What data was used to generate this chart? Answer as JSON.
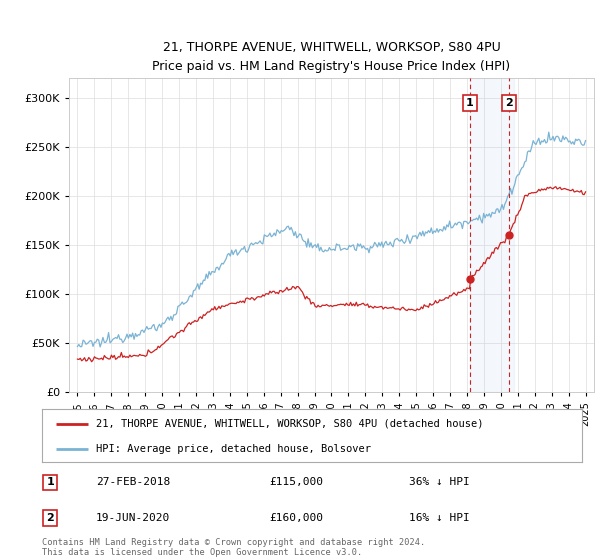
{
  "title_line1": "21, THORPE AVENUE, WHITWELL, WORKSOP, S80 4PU",
  "title_line2": "Price paid vs. HM Land Registry's House Price Index (HPI)",
  "hpi_color": "#7ab3d4",
  "price_color": "#cc2222",
  "marker1_date_label": "27-FEB-2018",
  "marker1_price": 115000,
  "marker1_price_str": "£115,000",
  "marker1_pct": "36% ↓ HPI",
  "marker2_date_label": "19-JUN-2020",
  "marker2_price": 160000,
  "marker2_price_str": "£160,000",
  "marker2_pct": "16% ↓ HPI",
  "marker1_x": 2018.15,
  "marker2_x": 2020.46,
  "legend_label1": "21, THORPE AVENUE, WHITWELL, WORKSOP, S80 4PU (detached house)",
  "legend_label2": "HPI: Average price, detached house, Bolsover",
  "footer": "Contains HM Land Registry data © Crown copyright and database right 2024.\nThis data is licensed under the Open Government Licence v3.0.",
  "shaded_x1": 2018.15,
  "shaded_x2": 2020.8,
  "ylim_max": 320000,
  "ylim_min": 0,
  "xlim_min": 1994.5,
  "xlim_max": 2025.5
}
